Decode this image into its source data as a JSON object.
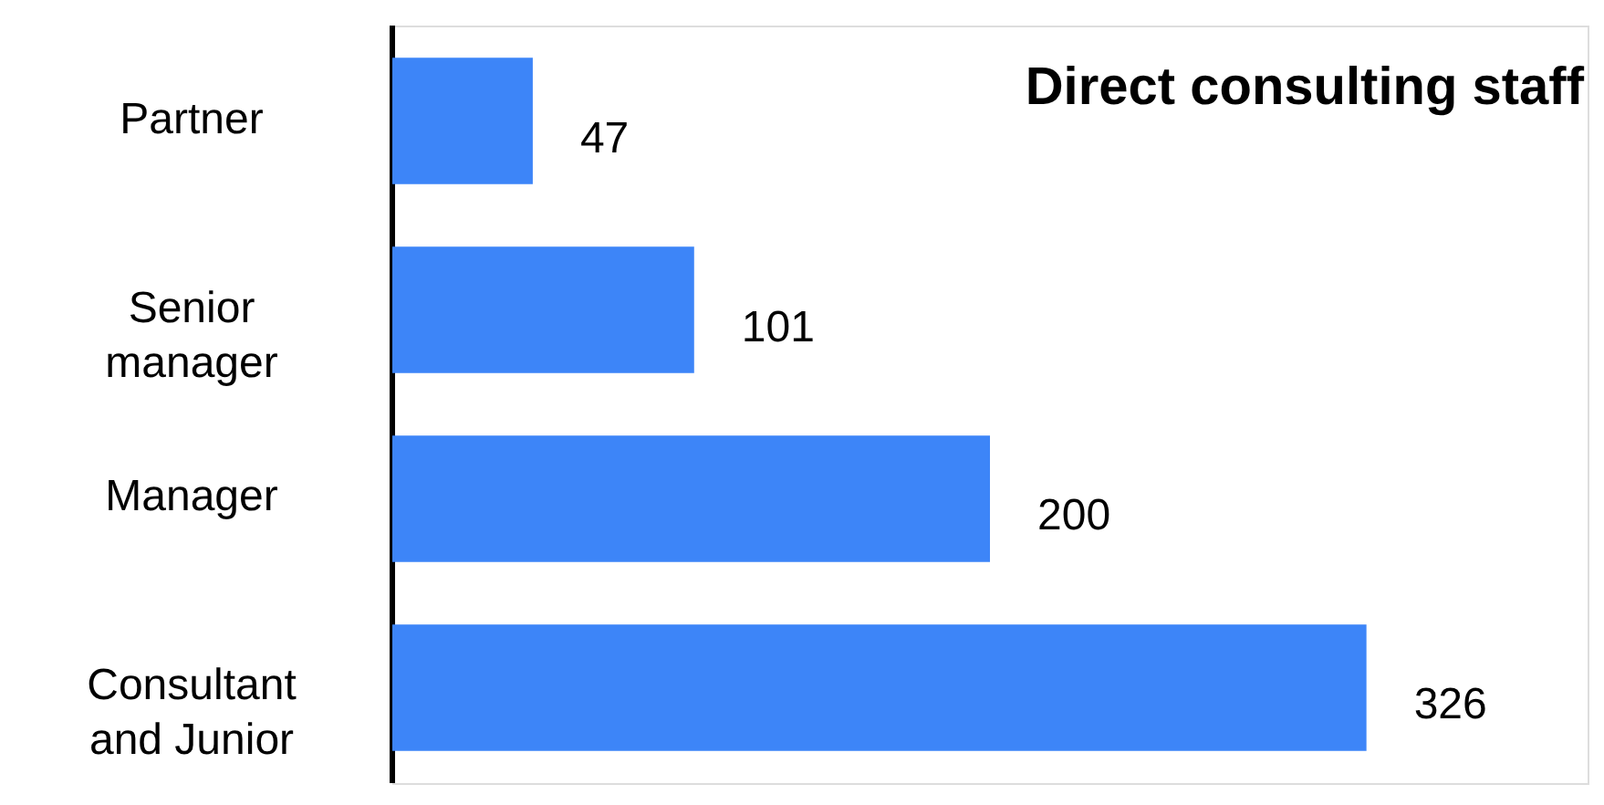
{
  "chart_data": {
    "type": "bar",
    "orientation": "horizontal",
    "title": "Direct consulting staff",
    "categories": [
      "Partner",
      "Senior\nmanager",
      "Manager",
      "Consultant\nand Junior"
    ],
    "values": [
      47,
      101,
      200,
      326
    ],
    "color": "#3d85f8",
    "data_labels": true,
    "xlim": [
      0,
      400
    ],
    "grid": false
  }
}
